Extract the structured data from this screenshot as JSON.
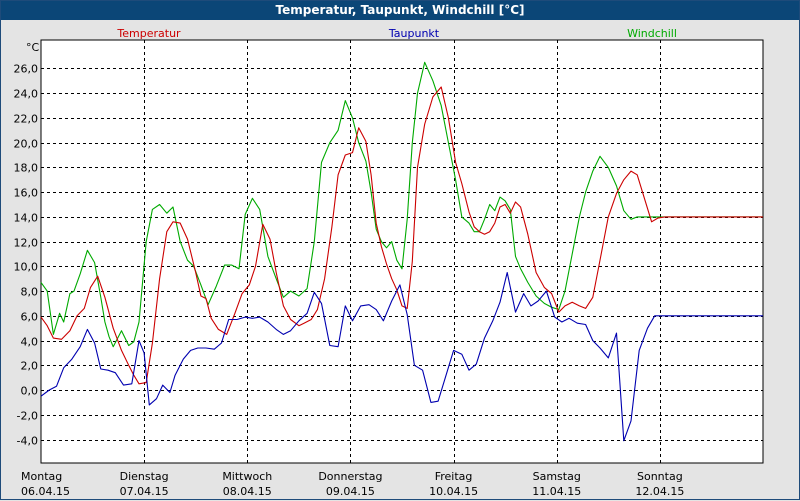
{
  "window_title": "Temperatur, Taupunkt, Windchill [°C]",
  "colors": {
    "title_bar": "#0b4677",
    "plot_bg": "#ffffff",
    "temperature": "#cc0000",
    "dewpoint": "#0000b0",
    "windchill": "#00aa00"
  },
  "chart_data": {
    "type": "line",
    "title": "Temperatur, Taupunkt, Windchill [°C]",
    "unit_label": "°C",
    "ylim": [
      -5.9,
      28.3
    ],
    "xlim": [
      0,
      7
    ],
    "grid": true,
    "legend_placement": "top",
    "y_ticks": [
      26.0,
      24.0,
      22.0,
      20.0,
      18.0,
      16.0,
      14.0,
      12.0,
      10.0,
      8.0,
      6.0,
      4.0,
      2.0,
      0.0,
      -2.0,
      -4.0
    ],
    "y_tick_labels": [
      "26,0",
      "24,0",
      "22,0",
      "20,0",
      "18,0",
      "16,0",
      "14,0",
      "12,0",
      "10,0",
      "8,0",
      "6,0",
      "4,0",
      "2,0",
      "0,0",
      "-2,0",
      "-4,0"
    ],
    "x_ticks": [
      {
        "x": 0,
        "day": "Montag",
        "date": "06.04.15"
      },
      {
        "x": 1,
        "day": "Dienstag",
        "date": "07.04.15"
      },
      {
        "x": 2,
        "day": "Mittwoch",
        "date": "08.04.15"
      },
      {
        "x": 3,
        "day": "Donnerstag",
        "date": "09.04.15"
      },
      {
        "x": 4,
        "day": "Freitag",
        "date": "10.04.15"
      },
      {
        "x": 5,
        "day": "Samstag",
        "date": "11.04.15"
      },
      {
        "x": 6,
        "day": "Sonntag",
        "date": "12.04.15"
      }
    ],
    "x_grid": [
      1,
      2,
      3,
      4,
      5,
      6
    ],
    "series": [
      {
        "name": "Temperatur",
        "color": "#cc0000",
        "x": [
          0,
          0.06,
          0.12,
          0.2,
          0.28,
          0.35,
          0.42,
          0.48,
          0.55,
          0.62,
          0.7,
          0.78,
          0.85,
          0.9,
          0.95,
          1.02,
          1.08,
          1.15,
          1.22,
          1.28,
          1.35,
          1.42,
          1.5,
          1.55,
          1.6,
          1.65,
          1.72,
          1.8,
          1.88,
          1.95,
          2.02,
          2.08,
          2.15,
          2.22,
          2.28,
          2.35,
          2.42,
          2.5,
          2.55,
          2.62,
          2.68,
          2.75,
          2.82,
          2.88,
          2.95,
          3.02,
          3.08,
          3.15,
          3.2,
          3.25,
          3.3,
          3.35,
          3.4,
          3.45,
          3.5,
          3.55,
          3.6,
          3.65,
          3.72,
          3.8,
          3.88,
          3.95,
          4.02,
          4.08,
          4.15,
          4.2,
          4.25,
          4.3,
          4.35,
          4.4,
          4.45,
          4.5,
          4.55,
          4.6,
          4.65,
          4.72,
          4.8,
          4.88,
          4.95,
          5.02,
          5.08,
          5.15,
          5.22,
          5.28,
          5.35,
          5.42,
          5.5,
          5.58,
          5.65,
          5.72,
          5.78,
          5.85,
          5.92,
          5.98,
          6.05,
          6.1,
          6.15,
          6.2,
          6.25,
          6.3,
          6.38,
          6.45,
          6.52,
          6.6,
          6.68,
          6.75,
          6.82,
          6.9,
          6.96,
          7.0
        ],
        "values": [
          5.9,
          5.2,
          4.2,
          4.1,
          4.8,
          6.0,
          6.6,
          8.3,
          9.2,
          7.5,
          5.0,
          3.2,
          2.0,
          1.2,
          0.5,
          0.6,
          3.8,
          9.0,
          12.8,
          13.6,
          13.5,
          12.2,
          9.5,
          7.6,
          7.4,
          5.8,
          4.9,
          4.5,
          6.2,
          7.8,
          8.5,
          10.0,
          13.4,
          12.2,
          9.5,
          6.8,
          5.7,
          5.2,
          5.4,
          5.7,
          6.5,
          9.0,
          13.2,
          17.4,
          19.0,
          19.2,
          21.2,
          20.1,
          17.4,
          13.5,
          11.6,
          10.2,
          9.0,
          8.1,
          6.8,
          6.6,
          10.4,
          18.0,
          21.5,
          23.7,
          24.5,
          22.0,
          18.4,
          16.7,
          14.4,
          13.2,
          12.8,
          12.6,
          12.8,
          13.5,
          14.8,
          15.0,
          14.3,
          15.2,
          14.8,
          12.6,
          9.5,
          8.3,
          7.8,
          6.3,
          6.8,
          7.1,
          6.8,
          6.6,
          7.5,
          10.5,
          14.0,
          15.9,
          17.0,
          17.7,
          17.4,
          15.5,
          13.6,
          13.9,
          14.0,
          14.0,
          14.0,
          14.0,
          14.0,
          14.0,
          14.0,
          14.0,
          14.0,
          14.0,
          14.0,
          14.0,
          14.0,
          14.0,
          14.0,
          14.0
        ]
      },
      {
        "name": "Taupunkt",
        "color": "#0000b0",
        "x": [
          0,
          0.08,
          0.15,
          0.22,
          0.3,
          0.38,
          0.45,
          0.52,
          0.58,
          0.65,
          0.72,
          0.8,
          0.88,
          0.95,
          1.0,
          1.05,
          1.12,
          1.18,
          1.25,
          1.3,
          1.38,
          1.45,
          1.52,
          1.6,
          1.68,
          1.75,
          1.82,
          1.9,
          1.98,
          2.05,
          2.12,
          2.2,
          2.28,
          2.35,
          2.42,
          2.5,
          2.58,
          2.65,
          2.72,
          2.8,
          2.88,
          2.95,
          3.02,
          3.1,
          3.18,
          3.25,
          3.32,
          3.4,
          3.48,
          3.55,
          3.62,
          3.7,
          3.78,
          3.85,
          3.92,
          4.0,
          4.08,
          4.15,
          4.22,
          4.3,
          4.38,
          4.45,
          4.52,
          4.6,
          4.68,
          4.75,
          4.82,
          4.9,
          4.98,
          5.05,
          5.12,
          5.2,
          5.28,
          5.35,
          5.42,
          5.5,
          5.58,
          5.65,
          5.72,
          5.8,
          5.88,
          5.95,
          6.02,
          6.1,
          6.18,
          6.25,
          6.32,
          6.4,
          6.48,
          6.55,
          6.62,
          6.7,
          6.78,
          6.85,
          6.92,
          7.0
        ],
        "values": [
          -0.5,
          0.0,
          0.3,
          1.8,
          2.5,
          3.5,
          4.9,
          3.8,
          1.7,
          1.6,
          1.4,
          0.4,
          0.5,
          4.0,
          3.0,
          -1.2,
          -0.7,
          0.4,
          -0.2,
          1.2,
          2.5,
          3.2,
          3.4,
          3.4,
          3.3,
          3.8,
          5.7,
          5.7,
          5.9,
          5.8,
          5.9,
          5.5,
          4.9,
          4.5,
          4.8,
          5.6,
          6.2,
          7.9,
          7.0,
          3.6,
          3.5,
          6.8,
          5.6,
          6.8,
          6.9,
          6.5,
          5.6,
          7.2,
          8.5,
          6.1,
          2.0,
          1.6,
          -1.0,
          -0.9,
          1.0,
          3.2,
          2.9,
          1.6,
          2.1,
          4.2,
          5.6,
          7.1,
          9.5,
          6.3,
          7.8,
          6.8,
          7.2,
          8.0,
          5.9,
          5.5,
          5.8,
          5.4,
          5.3,
          4.0,
          3.4,
          2.6,
          4.6,
          -4.1,
          -2.5,
          3.2,
          5.0,
          6.0,
          6.0,
          6.0,
          6.0,
          6.0,
          6.0,
          6.0,
          6.0,
          6.0,
          6.0,
          6.0,
          6.0,
          6.0,
          6.0,
          6.0
        ]
      },
      {
        "name": "Windchill",
        "color": "#00aa00",
        "x": [
          0,
          0.06,
          0.12,
          0.18,
          0.22,
          0.28,
          0.32,
          0.38,
          0.45,
          0.52,
          0.58,
          0.62,
          0.66,
          0.7,
          0.78,
          0.85,
          0.9,
          0.95,
          1.02,
          1.08,
          1.15,
          1.22,
          1.28,
          1.35,
          1.42,
          1.48,
          1.55,
          1.62,
          1.7,
          1.78,
          1.85,
          1.92,
          1.98,
          2.05,
          2.12,
          2.2,
          2.28,
          2.35,
          2.42,
          2.5,
          2.58,
          2.65,
          2.72,
          2.8,
          2.88,
          2.95,
          3.02,
          3.08,
          3.15,
          3.2,
          3.25,
          3.3,
          3.35,
          3.4,
          3.45,
          3.5,
          3.55,
          3.6,
          3.65,
          3.72,
          3.8,
          3.88,
          3.95,
          4.02,
          4.08,
          4.15,
          4.2,
          4.25,
          4.3,
          4.35,
          4.4,
          4.45,
          4.5,
          4.55,
          4.6,
          4.65,
          4.72,
          4.8,
          4.88,
          4.95,
          5.02,
          5.08,
          5.15,
          5.22,
          5.28,
          5.35,
          5.42,
          5.5,
          5.58,
          5.65,
          5.72,
          5.78,
          5.85,
          5.92,
          5.98,
          6.05,
          6.1,
          6.15,
          6.2,
          6.25,
          6.3,
          6.38,
          6.45,
          6.52,
          6.6,
          6.68,
          6.75,
          6.82,
          6.9,
          6.96,
          7.0
        ],
        "values": [
          8.7,
          8.0,
          4.5,
          6.2,
          5.5,
          7.8,
          8.0,
          9.4,
          11.3,
          10.3,
          7.5,
          5.5,
          4.3,
          3.5,
          4.8,
          3.6,
          3.9,
          5.5,
          12.0,
          14.6,
          15.0,
          14.3,
          14.8,
          12.0,
          10.5,
          10.0,
          8.5,
          6.9,
          8.4,
          10.1,
          10.1,
          9.8,
          14.2,
          15.5,
          14.6,
          10.8,
          9.0,
          7.5,
          8.0,
          7.6,
          8.2,
          12.0,
          18.4,
          20.0,
          21.0,
          23.4,
          22.0,
          20.0,
          18.5,
          16.0,
          13.0,
          12.0,
          11.5,
          12.0,
          10.5,
          9.8,
          13.8,
          20.0,
          24.0,
          26.5,
          25.0,
          23.0,
          20.0,
          17.0,
          14.0,
          13.5,
          12.8,
          12.8,
          13.8,
          15.0,
          14.5,
          15.6,
          15.3,
          14.6,
          10.8,
          9.8,
          8.7,
          7.6,
          7.0,
          6.7,
          6.5,
          8.0,
          11.0,
          14.0,
          16.0,
          17.7,
          18.9,
          18.0,
          16.5,
          14.5,
          13.8,
          14.0,
          14.0,
          14.0,
          14.0,
          14.0,
          14.0,
          14.0,
          14.0,
          14.0,
          14.0,
          14.0,
          14.0,
          14.0,
          14.0,
          14.0,
          14.0,
          14.0,
          14.0,
          14.0,
          14.0
        ]
      }
    ]
  }
}
